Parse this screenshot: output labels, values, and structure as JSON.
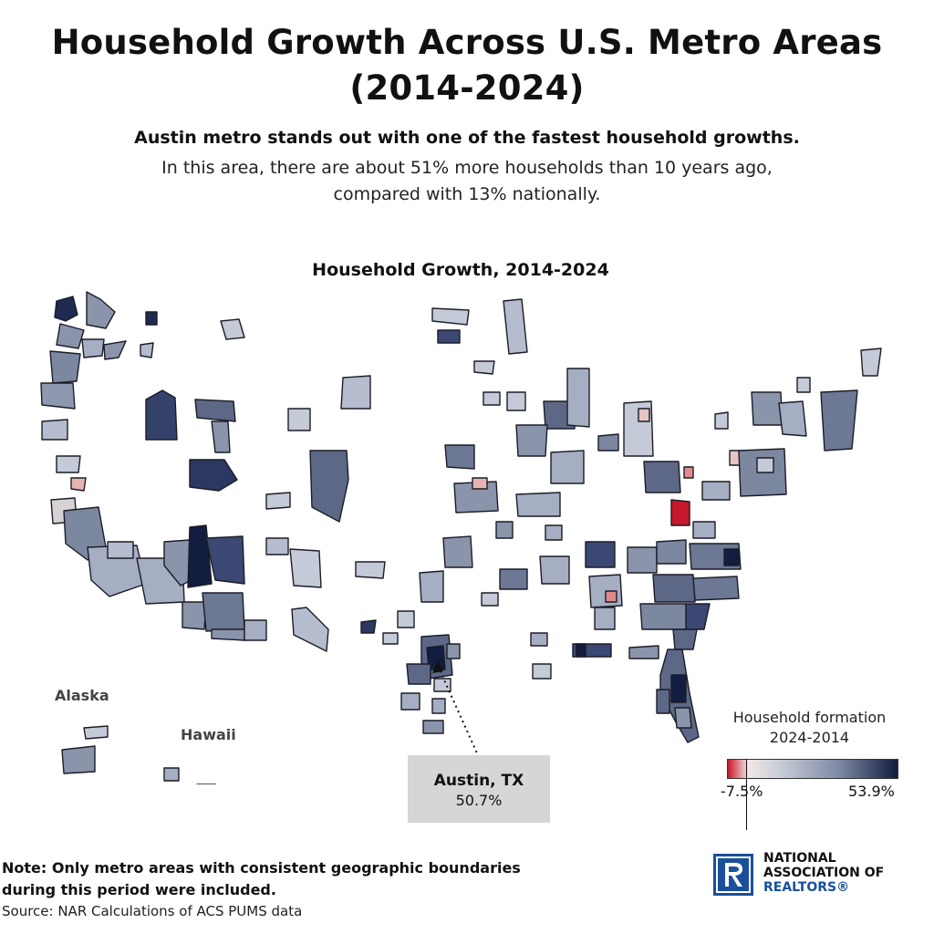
{
  "header": {
    "title_line1": "Household Growth Across U.S. Metro Areas",
    "title_line2": "(2014-2024)",
    "subtitle_bold": "Austin metro stands out with one of the fastest household growths.",
    "subtitle": "In this area, there are about 51% more households than 10 years ago, compared with 13% nationally."
  },
  "map": {
    "title": "Household Growth, 2014-2024",
    "alaska_label": "Alaska",
    "hawaii_label": "Hawaii",
    "callout": {
      "name": "Austin, TX",
      "value": "50.7%"
    }
  },
  "legend": {
    "title_line1": "Household formation",
    "title_line2": "2024-2014",
    "min_label": "-7.5%",
    "max_label": "53.9%",
    "colors": [
      "#c7182b",
      "#f3e6e6",
      "#c9ced9",
      "#7f8ba4",
      "#121d3f"
    ]
  },
  "footer": {
    "note_line1": "Note: Only metro areas with consistent geographic boundaries",
    "note_line2": "during this period were included.",
    "source": "Source: NAR Calculations of ACS PUMS data"
  },
  "logo": {
    "line1": "NATIONAL",
    "line2": "ASSOCIATION OF",
    "line3": "REALTORS®"
  }
}
